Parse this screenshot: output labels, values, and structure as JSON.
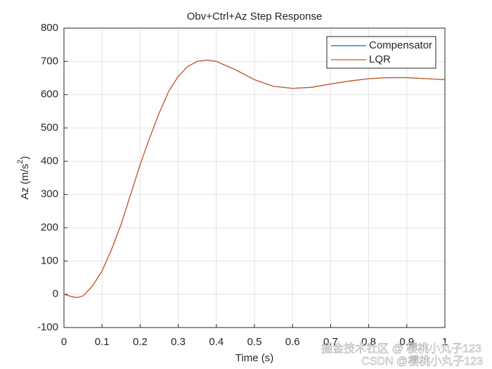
{
  "chart_data": {
    "type": "line",
    "title": "Obv+Ctrl+Az Step Response",
    "x_label": "Time (s)",
    "y_label_parts": [
      "Az (m/s",
      "2",
      ")"
    ],
    "x": [
      0,
      0.02,
      0.035,
      0.05,
      0.075,
      0.1,
      0.125,
      0.15,
      0.175,
      0.2,
      0.225,
      0.25,
      0.275,
      0.3,
      0.325,
      0.35,
      0.375,
      0.4,
      0.45,
      0.5,
      0.55,
      0.6,
      0.65,
      0.7,
      0.75,
      0.8,
      0.85,
      0.9,
      0.95,
      1.0
    ],
    "series": [
      {
        "name": "Compensator",
        "color": "#0072bd",
        "values": [
          0,
          -7,
          -10,
          -5,
          25,
          70,
          135,
          210,
          300,
          390,
          470,
          545,
          610,
          655,
          685,
          700,
          704,
          700,
          675,
          645,
          625,
          619,
          622,
          632,
          641,
          648,
          651,
          651,
          648,
          645
        ]
      },
      {
        "name": "LQR",
        "color": "#d95319",
        "values": [
          0,
          -7,
          -10,
          -5,
          25,
          70,
          135,
          210,
          300,
          390,
          470,
          545,
          610,
          655,
          685,
          700,
          704,
          700,
          675,
          645,
          625,
          619,
          622,
          632,
          641,
          648,
          651,
          651,
          648,
          645
        ]
      }
    ],
    "xlim": [
      0,
      1
    ],
    "xticks": [
      0,
      0.1,
      0.2,
      0.3,
      0.4,
      0.5,
      0.6,
      0.7,
      0.8,
      0.9,
      1
    ],
    "ylim": [
      -100,
      800
    ],
    "yticks": [
      -100,
      0,
      100,
      200,
      300,
      400,
      500,
      600,
      700,
      800
    ],
    "grid": true,
    "legend": "northeast",
    "annotations": [
      "掘金技术社区 @ 樱桃小丸子123",
      "CSDN @樱桃小丸子123"
    ]
  }
}
